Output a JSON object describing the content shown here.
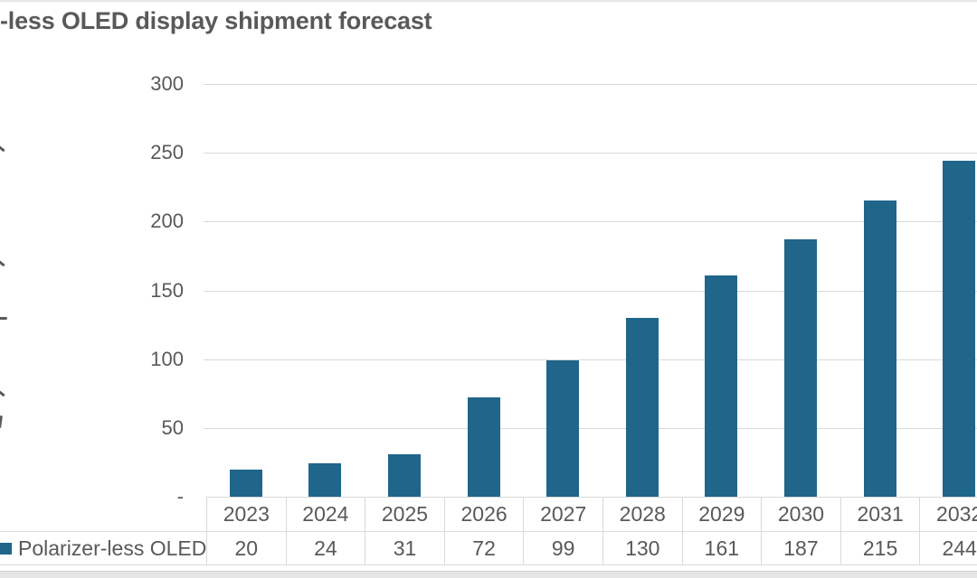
{
  "chart_data": {
    "type": "bar",
    "title": "-less OLED display shipment forecast",
    "categories": [
      "2023",
      "2024",
      "2025",
      "2026",
      "2027",
      "2028",
      "2029",
      "2030",
      "2031",
      "2032"
    ],
    "series": [
      {
        "name": "Polarizer-less OLED",
        "values": [
          20,
          24,
          31,
          72,
          99,
          130,
          161,
          187,
          215,
          244
        ],
        "color": "#20658a"
      }
    ],
    "xlabel": "",
    "ylabel": "",
    "ylim": [
      0,
      300
    ],
    "yticks": [
      300,
      250,
      200,
      150,
      100,
      50,
      0
    ],
    "ytick_labels": [
      "300",
      "250",
      "200",
      "150",
      "100",
      "50",
      "-"
    ],
    "grid": true,
    "gridline_color": "#d9d9d9",
    "text_color": "#595959",
    "table_border_color": "#d9d9d9",
    "page_edge_strip_color": "#e7e6e6",
    "legend_position": "bottom data table",
    "data_table_shown": true,
    "notes": "title and rightmost column are cropped at the image edges"
  }
}
